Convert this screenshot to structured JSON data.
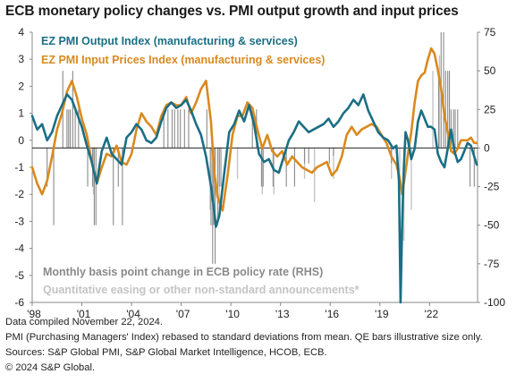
{
  "title": "ECB monetary policy changes vs. PMI output growth and input prices",
  "footer": {
    "line1": "Data compiled November 22, 2024.",
    "line2": "PMI (Purchasing Managers' Index) rebased to standard deviations from mean. QE bars illustrative size only.",
    "line3": "Sources: S&P Global PMI, S&P Global Market Intelligence, HCOB, ECB.",
    "line4": "© 2024 S&P Global."
  },
  "chart_data": {
    "type": "line",
    "title": "ECB monetary policy changes vs. PMI output growth and input prices",
    "x_tick_labels": [
      "'98",
      "'01",
      "'04",
      "'07",
      "'10",
      "'13",
      "'16",
      "'19",
      "'22"
    ],
    "x_tick_years": [
      1998,
      2001,
      2004,
      2007,
      2010,
      2013,
      2016,
      2019,
      2022
    ],
    "xlim": [
      1998.0,
      2024.9
    ],
    "y_left": {
      "ticks": [
        4,
        3,
        2,
        1,
        0,
        -1,
        -2,
        -3,
        -4,
        -5,
        -6
      ],
      "ylim": [
        -6,
        4
      ]
    },
    "y_right": {
      "ticks": [
        75,
        50,
        25,
        0,
        -25,
        -50,
        -75,
        -100
      ],
      "ylim": [
        -100,
        75
      ]
    },
    "zero_line_right_value": 0,
    "colors": {
      "output": "#1a6f84",
      "prices": "#d98a1f",
      "policy": "#8a8a8a",
      "qe": "#c4c4c4"
    },
    "legend": {
      "output": "EZ PMI Output Index (manufacturing & services)",
      "prices": "EZ PMI Input Prices Index (manufacturing & services)",
      "policy": "Monthly basis point change in ECB policy rate (RHS)",
      "qe": "Quantitative easing or other non-standard announcements*"
    },
    "series": [
      {
        "name": "EZ PMI Output Index (manufacturing & services)",
        "x": [
          1998.0,
          1998.3,
          1998.6,
          1998.9,
          1999.2,
          1999.5,
          1999.8,
          2000.1,
          2000.4,
          2000.7,
          2001.0,
          2001.3,
          2001.6,
          2001.9,
          2002.2,
          2002.5,
          2002.8,
          2003.1,
          2003.4,
          2003.7,
          2004.0,
          2004.3,
          2004.6,
          2004.9,
          2005.2,
          2005.5,
          2005.8,
          2006.1,
          2006.4,
          2006.7,
          2007.0,
          2007.3,
          2007.6,
          2007.9,
          2008.2,
          2008.5,
          2008.8,
          2008.95,
          2009.1,
          2009.3,
          2009.6,
          2009.9,
          2010.2,
          2010.5,
          2010.8,
          2011.1,
          2011.4,
          2011.7,
          2012.0,
          2012.3,
          2012.6,
          2012.9,
          2013.2,
          2013.5,
          2013.8,
          2014.1,
          2014.4,
          2014.7,
          2015.0,
          2015.3,
          2015.6,
          2015.9,
          2016.2,
          2016.5,
          2016.8,
          2017.1,
          2017.4,
          2017.7,
          2018.0,
          2018.3,
          2018.6,
          2018.9,
          2019.2,
          2019.5,
          2019.8,
          2020.0,
          2020.15,
          2020.25,
          2020.35,
          2020.45,
          2020.55,
          2020.7,
          2020.9,
          2021.1,
          2021.3,
          2021.5,
          2021.7,
          2021.9,
          2022.1,
          2022.3,
          2022.5,
          2022.7,
          2022.9,
          2023.1,
          2023.3,
          2023.5,
          2023.7,
          2023.9,
          2024.1,
          2024.3,
          2024.5,
          2024.7,
          2024.85
        ],
        "values": [
          0.9,
          0.4,
          0.6,
          0.0,
          0.3,
          0.9,
          1.3,
          1.7,
          1.5,
          1.0,
          0.5,
          -0.2,
          -0.8,
          -1.6,
          -0.4,
          0.1,
          -0.5,
          -0.7,
          -0.9,
          0.1,
          0.3,
          0.6,
          0.4,
          0.0,
          -0.1,
          0.1,
          0.7,
          1.2,
          1.4,
          1.2,
          1.3,
          1.5,
          1.1,
          0.6,
          0.2,
          -0.6,
          -1.7,
          -2.4,
          -3.2,
          -2.8,
          -1.2,
          0.3,
          0.6,
          1.1,
          0.7,
          1.3,
          0.6,
          -0.5,
          -0.8,
          -0.7,
          -1.1,
          -1.2,
          -0.6,
          0.0,
          0.3,
          0.7,
          0.5,
          0.3,
          0.4,
          0.5,
          0.6,
          0.8,
          0.5,
          0.7,
          1.0,
          1.2,
          1.5,
          1.3,
          1.7,
          1.1,
          0.7,
          0.3,
          0.1,
          0.0,
          -0.3,
          -0.2,
          -1.5,
          -6.0,
          -3.0,
          -1.0,
          0.3,
          0.0,
          -0.7,
          -0.3,
          0.7,
          1.1,
          0.8,
          0.5,
          0.5,
          0.4,
          -0.5,
          -0.8,
          -1.0,
          -0.3,
          0.4,
          -0.4,
          -0.8,
          -0.7,
          -0.4,
          -0.1,
          -0.2,
          -0.6,
          -0.9
        ]
      },
      {
        "name": "EZ PMI Input Prices Index (manufacturing & services)",
        "x": [
          1998.0,
          1998.3,
          1998.6,
          1998.9,
          1999.2,
          1999.5,
          1999.8,
          2000.1,
          2000.4,
          2000.7,
          2001.0,
          2001.3,
          2001.6,
          2001.9,
          2002.2,
          2002.5,
          2002.8,
          2003.1,
          2003.4,
          2003.7,
          2004.0,
          2004.3,
          2004.6,
          2004.9,
          2005.2,
          2005.5,
          2005.8,
          2006.1,
          2006.4,
          2006.7,
          2007.0,
          2007.3,
          2007.6,
          2007.9,
          2008.2,
          2008.5,
          2008.8,
          2009.0,
          2009.2,
          2009.5,
          2009.8,
          2010.1,
          2010.4,
          2010.7,
          2011.0,
          2011.3,
          2011.6,
          2011.9,
          2012.2,
          2012.5,
          2012.8,
          2013.1,
          2013.4,
          2013.7,
          2014.0,
          2014.3,
          2014.6,
          2014.9,
          2015.2,
          2015.5,
          2015.8,
          2016.1,
          2016.4,
          2016.7,
          2017.0,
          2017.3,
          2017.6,
          2017.9,
          2018.2,
          2018.5,
          2018.8,
          2019.1,
          2019.4,
          2019.7,
          2020.0,
          2020.2,
          2020.35,
          2020.5,
          2020.7,
          2020.9,
          2021.1,
          2021.3,
          2021.5,
          2021.7,
          2021.9,
          2022.1,
          2022.3,
          2022.5,
          2022.7,
          2022.9,
          2023.1,
          2023.3,
          2023.5,
          2023.7,
          2023.9,
          2024.1,
          2024.3,
          2024.5,
          2024.7,
          2024.85
        ],
        "values": [
          -1.0,
          -1.6,
          -2.0,
          -1.5,
          -0.6,
          0.4,
          1.0,
          1.8,
          2.2,
          1.6,
          0.8,
          0.2,
          -0.8,
          -1.6,
          -1.0,
          -0.5,
          -0.6,
          -0.2,
          -0.8,
          -0.9,
          -0.5,
          0.4,
          1.0,
          0.7,
          0.5,
          0.2,
          0.9,
          1.3,
          1.4,
          1.3,
          1.3,
          1.6,
          1.0,
          1.4,
          1.9,
          2.2,
          0.7,
          -1.2,
          -2.1,
          -2.6,
          -1.3,
          0.2,
          0.9,
          0.9,
          1.4,
          1.2,
          0.4,
          -0.3,
          0.2,
          -0.4,
          -0.6,
          -0.4,
          -0.9,
          -0.6,
          -0.8,
          -1.0,
          -1.1,
          -1.2,
          -1.0,
          -0.9,
          -0.8,
          -1.3,
          -1.1,
          -0.6,
          0.2,
          0.5,
          0.2,
          0.4,
          0.5,
          0.6,
          0.5,
          0.2,
          -0.1,
          -0.6,
          -0.9,
          -1.4,
          -2.0,
          -1.4,
          -0.5,
          0.3,
          1.4,
          2.2,
          2.4,
          2.5,
          3.0,
          3.4,
          3.2,
          2.6,
          1.9,
          0.9,
          0.3,
          -0.4,
          -0.5,
          -0.3,
          0.0,
          0.0,
          0.0,
          0.1,
          -0.1,
          -0.1
        ]
      },
      {
        "name": "Monthly basis point change in ECB policy rate (RHS)",
        "x": [
          1998.9,
          1999.3,
          1999.85,
          2000.1,
          2000.2,
          2000.3,
          2000.45,
          2000.6,
          2000.8,
          2001.35,
          2001.65,
          2001.75,
          2001.85,
          2002.9,
          2003.2,
          2003.45,
          2005.95,
          2006.2,
          2006.45,
          2006.6,
          2006.8,
          2006.95,
          2007.2,
          2007.45,
          2008.55,
          2008.8,
          2008.9,
          2008.97,
          2009.05,
          2009.2,
          2009.3,
          2009.4,
          2011.3,
          2011.55,
          2011.85,
          2011.95,
          2012.55,
          2013.35,
          2013.85,
          2014.45,
          2014.7,
          2015.95,
          2016.2,
          2019.7,
          2022.55,
          2022.7,
          2022.85,
          2022.97,
          2023.1,
          2023.2,
          2023.3,
          2023.45,
          2023.55,
          2023.7,
          2024.45,
          2024.7
        ],
        "values": [
          -25,
          -50,
          50,
          25,
          25,
          25,
          50,
          25,
          25,
          -25,
          -25,
          -50,
          -50,
          -50,
          -25,
          -50,
          25,
          25,
          25,
          25,
          25,
          25,
          25,
          25,
          25,
          -50,
          -75,
          -50,
          -75,
          -50,
          -25,
          -25,
          25,
          25,
          -25,
          -25,
          -25,
          -25,
          -25,
          -10,
          -10,
          -10,
          -5,
          -10,
          50,
          75,
          75,
          50,
          50,
          50,
          25,
          25,
          25,
          25,
          -25,
          -25
        ]
      },
      {
        "name": "Quantitative easing or other non-standard announcements*",
        "x": [
          2001.7,
          2008.75,
          2009.3,
          2010.4,
          2011.9,
          2012.6,
          2014.45,
          2015.05,
          2016.2,
          2019.7,
          2020.2,
          2020.45,
          2020.9,
          2022.2,
          2022.6
        ],
        "values": [
          -30,
          -40,
          -40,
          -20,
          -30,
          -30,
          -20,
          -35,
          -20,
          -20,
          -60,
          -60,
          -40,
          50,
          60
        ]
      }
    ]
  }
}
